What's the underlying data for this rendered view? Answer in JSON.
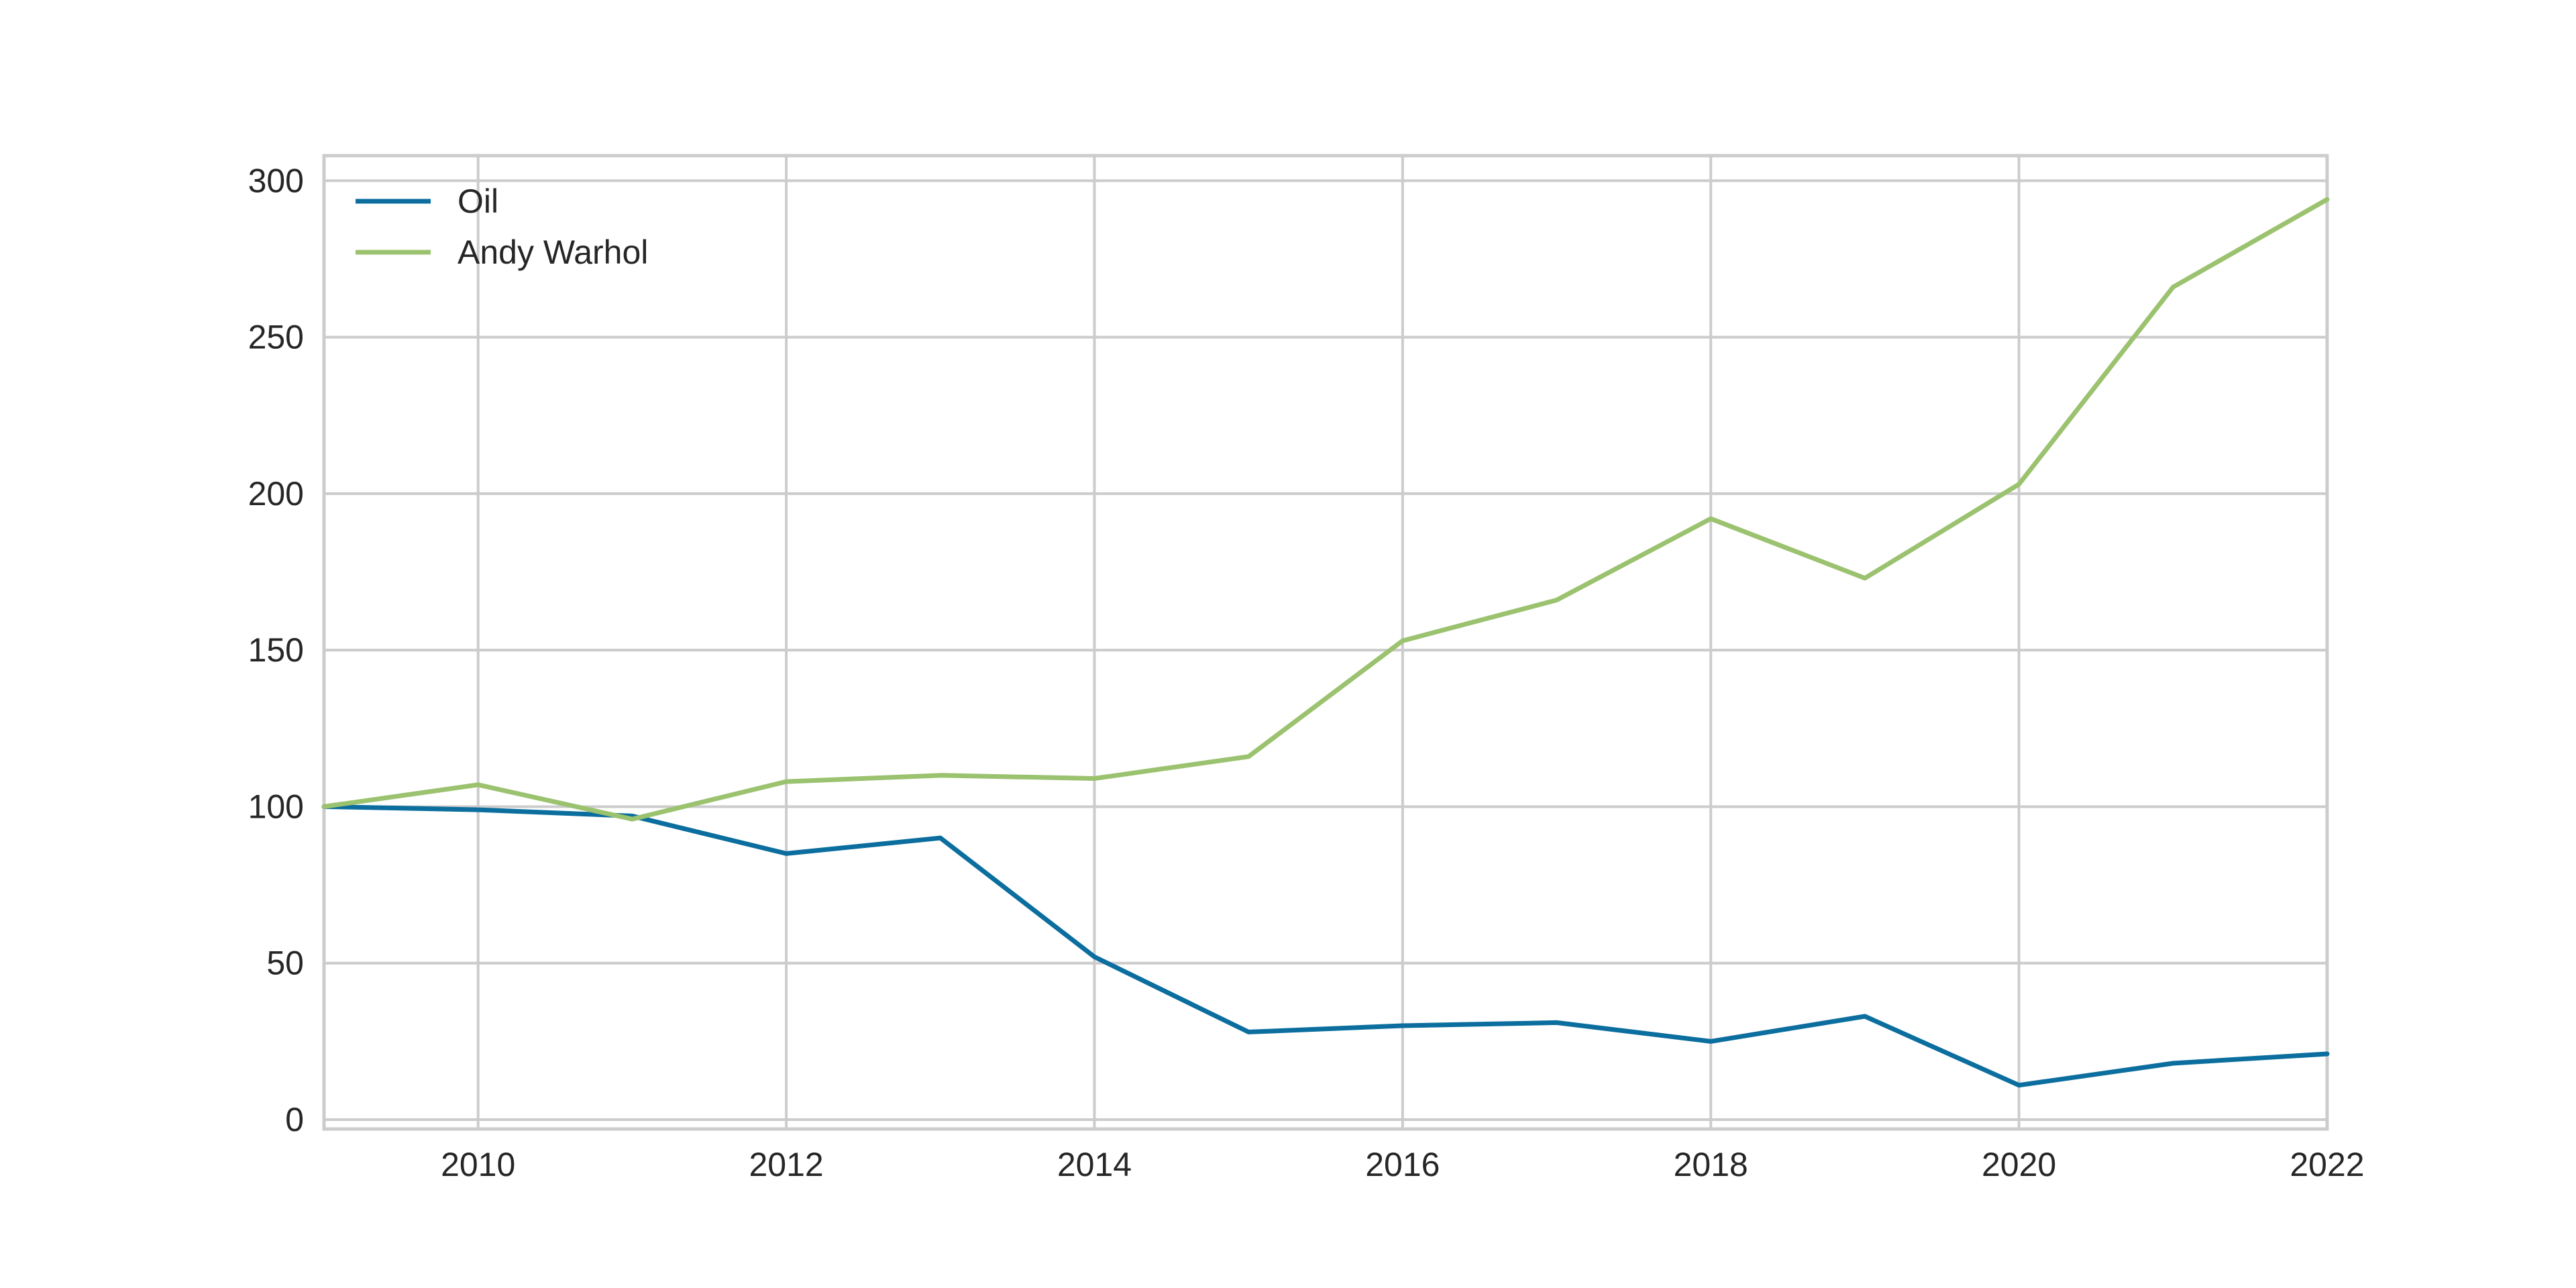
{
  "chart_data": {
    "type": "line",
    "title": "",
    "xlabel": "",
    "ylabel": "",
    "x": [
      2009,
      2010,
      2011,
      2012,
      2013,
      2014,
      2015,
      2016,
      2017,
      2018,
      2019,
      2020,
      2021,
      2022
    ],
    "series": [
      {
        "name": "Oil",
        "color": "#0b6e9e",
        "values": [
          100,
          99,
          97,
          85,
          90,
          52,
          28,
          30,
          31,
          25,
          33,
          11,
          18,
          21
        ]
      },
      {
        "name": "Andy Warhol",
        "color": "#9bc26f",
        "values": [
          100,
          107,
          96,
          108,
          110,
          109,
          116,
          153,
          166,
          192,
          173,
          203,
          266,
          294
        ]
      }
    ],
    "xlim": [
      2009,
      2022
    ],
    "ylim": [
      -3,
      308
    ],
    "xticks": [
      2010,
      2012,
      2014,
      2016,
      2018,
      2020,
      2022
    ],
    "yticks": [
      0,
      50,
      100,
      150,
      200,
      250,
      300
    ],
    "grid": true,
    "legend_position": "top-left"
  }
}
